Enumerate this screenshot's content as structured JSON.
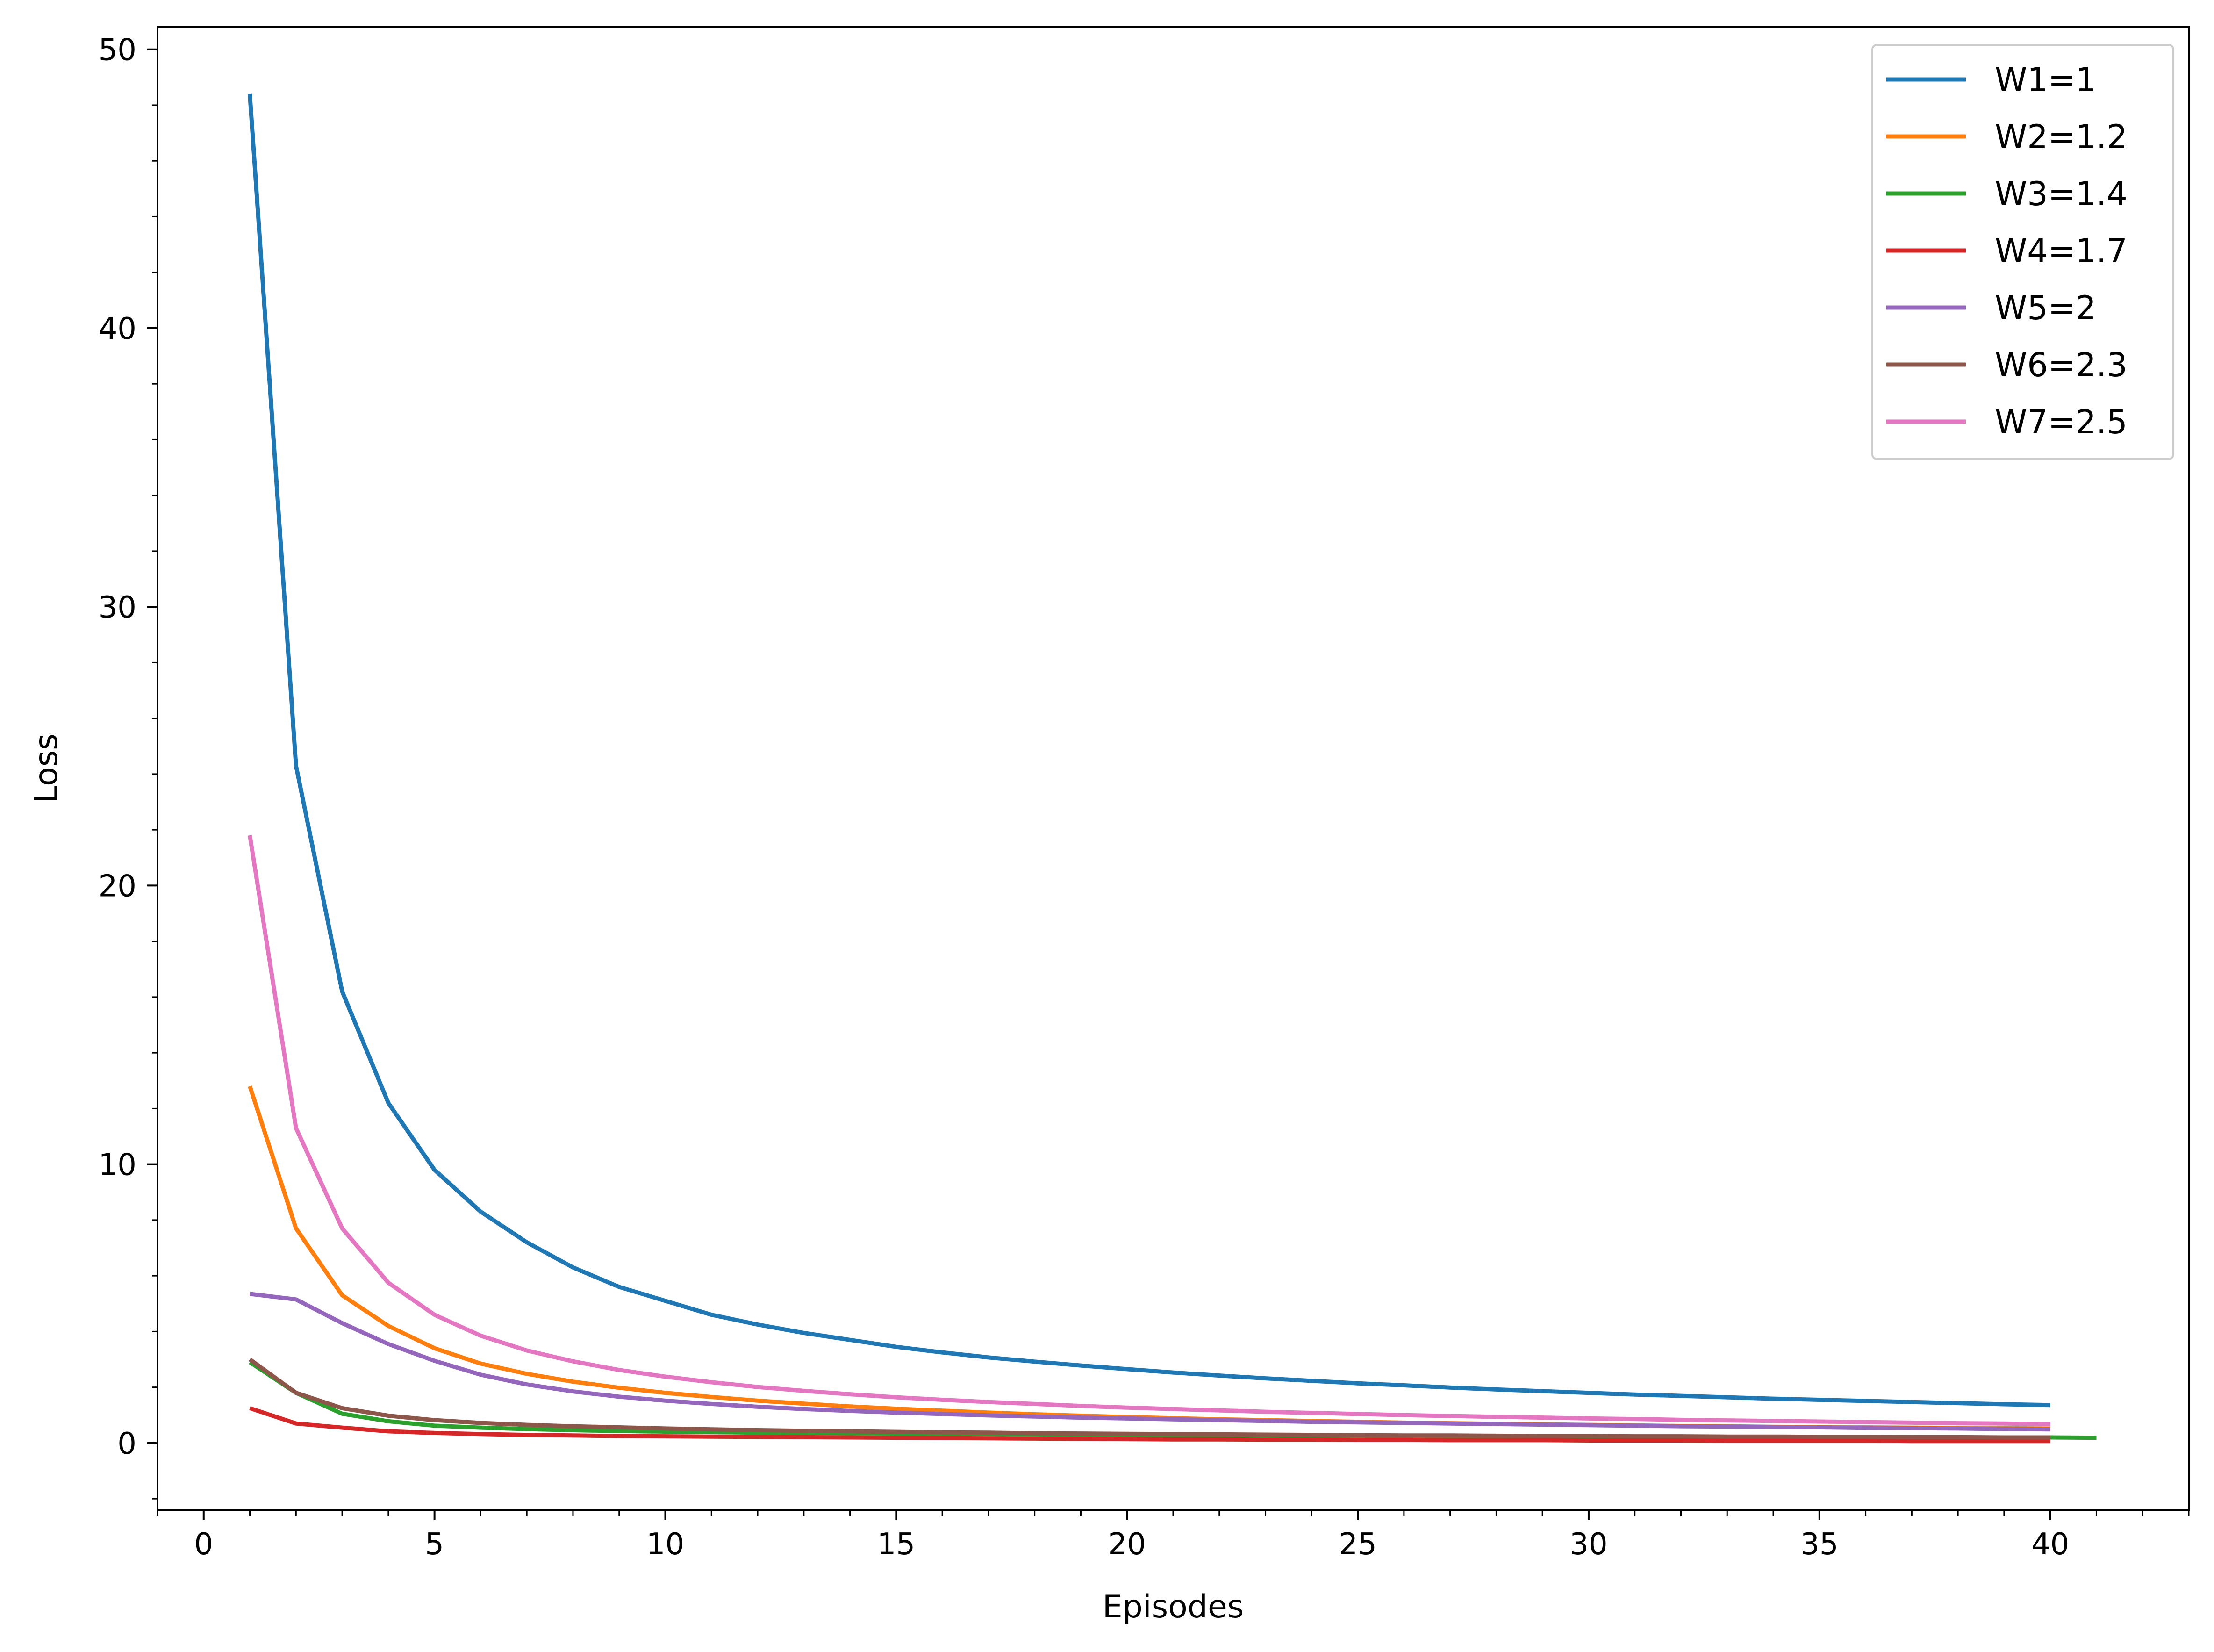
{
  "chart_data": {
    "type": "line",
    "title": "",
    "xlabel": "Episodes",
    "ylabel": "Loss",
    "xlim": [
      -1,
      43
    ],
    "ylim": [
      -2.4,
      50.8
    ],
    "xticks": [
      0,
      5,
      10,
      15,
      20,
      25,
      30,
      35,
      40
    ],
    "yticks": [
      0,
      10,
      20,
      30,
      40,
      50
    ],
    "grid": false,
    "legend_position": "top-right",
    "series": [
      {
        "name": "W1=1",
        "color": "#1f77b4",
        "x": [
          1,
          2,
          3,
          4,
          5,
          6,
          7,
          8,
          9,
          10,
          11,
          12,
          13,
          14,
          15,
          16,
          17,
          18,
          19,
          20,
          21,
          22,
          23,
          24,
          25,
          26,
          27,
          28,
          29,
          30,
          31,
          32,
          33,
          34,
          35,
          36,
          37,
          38,
          39,
          40
        ],
        "y": [
          48.4,
          24.3,
          16.2,
          12.2,
          9.8,
          8.3,
          7.2,
          6.3,
          5.6,
          5.1,
          4.6,
          4.25,
          3.95,
          3.7,
          3.45,
          3.25,
          3.07,
          2.92,
          2.78,
          2.65,
          2.53,
          2.42,
          2.32,
          2.23,
          2.14,
          2.07,
          1.99,
          1.92,
          1.86,
          1.8,
          1.74,
          1.69,
          1.64,
          1.59,
          1.55,
          1.51,
          1.47,
          1.43,
          1.39,
          1.36
        ]
      },
      {
        "name": "W2=1.2",
        "color": "#ff7f0e",
        "x": [
          1,
          2,
          3,
          4,
          5,
          6,
          7,
          8,
          9,
          10,
          11,
          12,
          13,
          14,
          15,
          16,
          17,
          18,
          19,
          20,
          21,
          22,
          23,
          24,
          25,
          26,
          27,
          28,
          29,
          30,
          31,
          32,
          33,
          34,
          35,
          36,
          37,
          38,
          39,
          40
        ],
        "y": [
          12.8,
          7.7,
          5.3,
          4.2,
          3.4,
          2.85,
          2.48,
          2.2,
          1.98,
          1.8,
          1.65,
          1.52,
          1.41,
          1.31,
          1.23,
          1.16,
          1.09,
          1.03,
          0.98,
          0.93,
          0.89,
          0.85,
          0.82,
          0.79,
          0.76,
          0.73,
          0.71,
          0.69,
          0.67,
          0.65,
          0.63,
          0.61,
          0.6,
          0.58,
          0.57,
          0.56,
          0.55,
          0.54,
          0.53,
          0.52
        ]
      },
      {
        "name": "W3=1.4",
        "color": "#2ca02c",
        "x": [
          1,
          2,
          3,
          4,
          5,
          6,
          7,
          8,
          9,
          10,
          11,
          12,
          13,
          14,
          15,
          16,
          17,
          18,
          19,
          20,
          21,
          22,
          23,
          24,
          25,
          26,
          27,
          28,
          29,
          30,
          31,
          32,
          33,
          34,
          35,
          36,
          37,
          38,
          39,
          40,
          41
        ],
        "y": [
          2.9,
          1.8,
          1.05,
          0.78,
          0.62,
          0.55,
          0.5,
          0.46,
          0.43,
          0.41,
          0.39,
          0.37,
          0.36,
          0.35,
          0.34,
          0.33,
          0.32,
          0.31,
          0.3,
          0.29,
          0.28,
          0.28,
          0.27,
          0.26,
          0.26,
          0.25,
          0.25,
          0.24,
          0.24,
          0.23,
          0.23,
          0.22,
          0.22,
          0.22,
          0.21,
          0.21,
          0.21,
          0.2,
          0.2,
          0.2,
          0.19
        ]
      },
      {
        "name": "W4=1.7",
        "color": "#d62728",
        "x": [
          1,
          2,
          3,
          4,
          5,
          6,
          7,
          8,
          9,
          10,
          11,
          12,
          13,
          14,
          15,
          16,
          17,
          18,
          19,
          20,
          21,
          22,
          23,
          24,
          25,
          26,
          27,
          28,
          29,
          30,
          31,
          32,
          33,
          34,
          35,
          36,
          37,
          38,
          39,
          40
        ],
        "y": [
          1.25,
          0.7,
          0.55,
          0.42,
          0.36,
          0.32,
          0.29,
          0.27,
          0.25,
          0.24,
          0.23,
          0.22,
          0.21,
          0.2,
          0.19,
          0.18,
          0.17,
          0.16,
          0.15,
          0.14,
          0.13,
          0.13,
          0.12,
          0.12,
          0.11,
          0.11,
          0.1,
          0.1,
          0.1,
          0.09,
          0.09,
          0.09,
          0.08,
          0.08,
          0.08,
          0.08,
          0.07,
          0.07,
          0.07,
          0.07
        ]
      },
      {
        "name": "W5=2",
        "color": "#9467bd",
        "x": [
          1,
          2,
          3,
          4,
          5,
          6,
          7,
          8,
          9,
          10,
          11,
          12,
          13,
          14,
          15,
          16,
          17,
          18,
          19,
          20,
          21,
          22,
          23,
          24,
          25,
          26,
          27,
          28,
          29,
          30,
          31,
          32,
          33,
          34,
          35,
          36,
          37,
          38,
          39,
          40
        ],
        "y": [
          5.35,
          5.15,
          4.3,
          3.55,
          2.95,
          2.45,
          2.1,
          1.85,
          1.66,
          1.52,
          1.4,
          1.3,
          1.22,
          1.15,
          1.09,
          1.04,
          0.99,
          0.95,
          0.91,
          0.88,
          0.85,
          0.82,
          0.79,
          0.76,
          0.74,
          0.72,
          0.7,
          0.68,
          0.66,
          0.64,
          0.62,
          0.6,
          0.59,
          0.57,
          0.56,
          0.54,
          0.53,
          0.52,
          0.5,
          0.49
        ]
      },
      {
        "name": "W6=2.3",
        "color": "#8c564b",
        "x": [
          1,
          2,
          3,
          4,
          5,
          6,
          7,
          8,
          9,
          10,
          11,
          12,
          13,
          14,
          15,
          16,
          17,
          18,
          19,
          20,
          21,
          22,
          23,
          24,
          25,
          26,
          27,
          28,
          29,
          30,
          31,
          32,
          33,
          34,
          35,
          36,
          37,
          38,
          39,
          40
        ],
        "y": [
          3.0,
          1.8,
          1.25,
          0.98,
          0.82,
          0.72,
          0.65,
          0.6,
          0.56,
          0.52,
          0.49,
          0.46,
          0.44,
          0.42,
          0.4,
          0.38,
          0.37,
          0.35,
          0.34,
          0.33,
          0.32,
          0.31,
          0.3,
          0.29,
          0.28,
          0.27,
          0.27,
          0.26,
          0.25,
          0.25,
          0.24,
          0.24,
          0.23,
          0.23,
          0.22,
          0.22,
          0.21,
          0.21,
          0.2,
          0.2
        ]
      },
      {
        "name": "W7=2.5",
        "color": "#e377c2",
        "x": [
          1,
          2,
          3,
          4,
          5,
          6,
          7,
          8,
          9,
          10,
          11,
          12,
          13,
          14,
          15,
          16,
          17,
          18,
          19,
          20,
          21,
          22,
          23,
          24,
          25,
          26,
          27,
          28,
          29,
          30,
          31,
          32,
          33,
          34,
          35,
          36,
          37,
          38,
          39,
          40
        ],
        "y": [
          21.8,
          11.3,
          7.7,
          5.75,
          4.6,
          3.85,
          3.32,
          2.93,
          2.62,
          2.38,
          2.18,
          2.01,
          1.87,
          1.75,
          1.64,
          1.55,
          1.47,
          1.4,
          1.33,
          1.27,
          1.22,
          1.17,
          1.12,
          1.08,
          1.04,
          1.0,
          0.97,
          0.94,
          0.91,
          0.88,
          0.86,
          0.83,
          0.81,
          0.79,
          0.77,
          0.75,
          0.73,
          0.71,
          0.7,
          0.68
        ]
      }
    ]
  }
}
